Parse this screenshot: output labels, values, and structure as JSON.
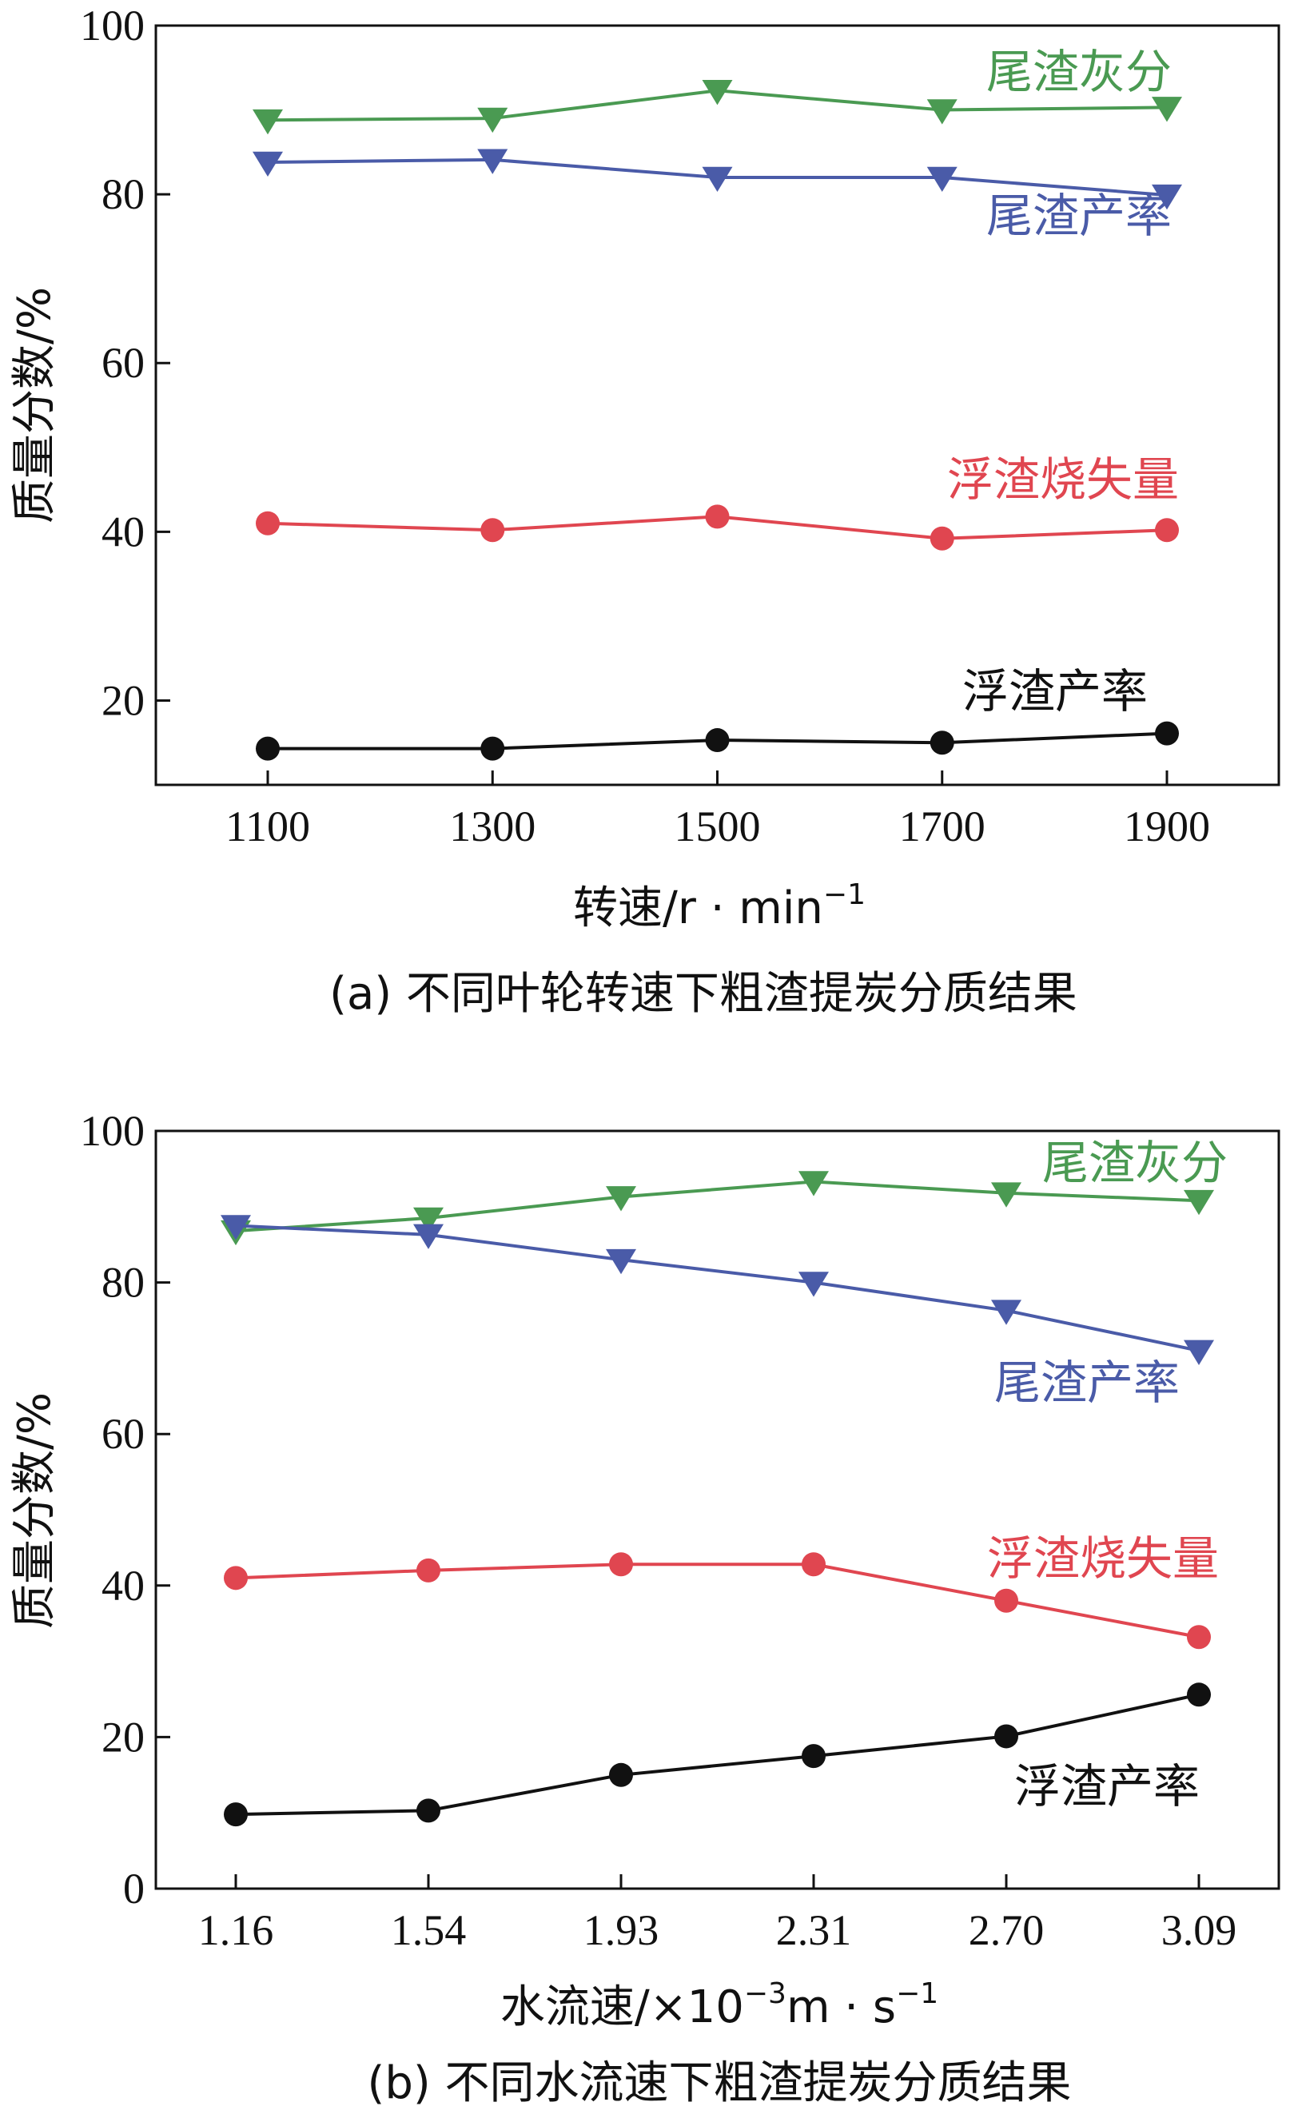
{
  "chart_data": [
    {
      "type": "line",
      "caption": "(a) 不同叶轮转速下粗渣提炭分质结果",
      "xlabel": "转速/r · min",
      "xlabel_sup": "−1",
      "ylabel": "质量分数/%",
      "categories": [
        "1100",
        "1300",
        "1500",
        "1700",
        "1900"
      ],
      "ylim": [
        10,
        100
      ],
      "yticks": [
        20,
        40,
        60,
        80,
        100
      ],
      "grid": false,
      "series": [
        {
          "name": "尾渣灰分",
          "color": "#4a9a52",
          "marker": "triangle-down",
          "values": [
            88.8,
            89.0,
            92.3,
            90.0,
            90.3
          ]
        },
        {
          "name": "尾渣产率",
          "color": "#4a5ba8",
          "marker": "triangle-down",
          "values": [
            83.8,
            84.1,
            82.0,
            82.0,
            79.9
          ]
        },
        {
          "name": "浮渣烧失量",
          "color": "#e04650",
          "marker": "circle",
          "values": [
            41.0,
            40.2,
            41.8,
            39.2,
            40.2
          ]
        },
        {
          "name": "浮渣产率",
          "color": "#111111",
          "marker": "circle",
          "values": [
            14.3,
            14.3,
            15.3,
            15.0,
            16.1
          ]
        }
      ]
    },
    {
      "type": "line",
      "caption": "(b) 不同水流速下粗渣提炭分质结果",
      "xlabel": "水流速/×10",
      "xlabel_sup": "−3",
      "xlabel_tail": "m · s",
      "xlabel_sup2": "−1",
      "ylabel": "质量分数/%",
      "categories": [
        "1.16",
        "1.54",
        "1.93",
        "2.31",
        "2.70",
        "3.09"
      ],
      "ylim": [
        0,
        100
      ],
      "yticks": [
        0,
        20,
        40,
        60,
        80,
        100
      ],
      "grid": false,
      "series": [
        {
          "name": "尾渣灰分",
          "color": "#4a9a52",
          "marker": "triangle-down",
          "values": [
            86.8,
            88.5,
            91.3,
            93.3,
            91.8,
            90.8
          ]
        },
        {
          "name": "尾渣产率",
          "color": "#4a5ba8",
          "marker": "triangle-down",
          "values": [
            87.5,
            86.3,
            83.0,
            80.0,
            76.3,
            71.0
          ]
        },
        {
          "name": "浮渣烧失量",
          "color": "#e04650",
          "marker": "circle",
          "values": [
            41.0,
            42.0,
            42.8,
            42.8,
            38.0,
            33.2
          ]
        },
        {
          "name": "浮渣产率",
          "color": "#111111",
          "marker": "circle",
          "values": [
            9.8,
            10.3,
            15.0,
            17.5,
            20.1,
            25.6
          ]
        }
      ]
    }
  ]
}
